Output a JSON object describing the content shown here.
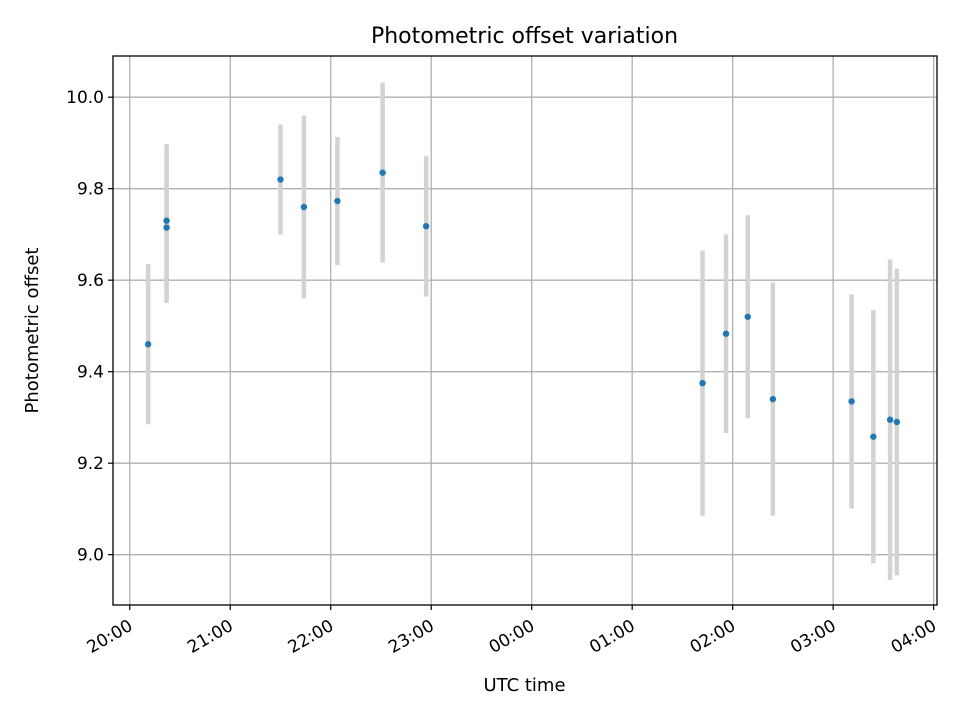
{
  "chart_data": {
    "type": "scatter",
    "title": "Photometric offset variation",
    "xlabel": "UTC time",
    "ylabel": "Photometric offset",
    "x_axis": "time",
    "x_start": "19:50",
    "x_end": "04:02",
    "x_ticks": [
      "20:00",
      "21:00",
      "22:00",
      "23:00",
      "00:00",
      "01:00",
      "02:00",
      "03:00",
      "04:00"
    ],
    "ylim": [
      8.89,
      10.09
    ],
    "y_ticks": [
      "9.0",
      "9.2",
      "9.4",
      "9.6",
      "9.8",
      "10.0"
    ],
    "grid": true,
    "marker_color": "#1f77b4",
    "errorbar_color": "#d3d3d3",
    "points": [
      {
        "time": "20:11",
        "y": 9.46,
        "err": 0.175
      },
      {
        "time": "20:22",
        "y": 9.715,
        "err": 0.165
      },
      {
        "time": "20:22",
        "y": 9.73,
        "err": 0.168
      },
      {
        "time": "21:30",
        "y": 9.82,
        "err": 0.12
      },
      {
        "time": "21:44",
        "y": 9.76,
        "err": 0.2
      },
      {
        "time": "22:04",
        "y": 9.773,
        "err": 0.14
      },
      {
        "time": "22:31",
        "y": 9.835,
        "err": 0.197
      },
      {
        "time": "22:57",
        "y": 9.718,
        "err": 0.154
      },
      {
        "time": "01:42",
        "y": 9.375,
        "err": 0.29
      },
      {
        "time": "01:56",
        "y": 9.483,
        "err": 0.217
      },
      {
        "time": "02:09",
        "y": 9.52,
        "err": 0.222
      },
      {
        "time": "02:24",
        "y": 9.34,
        "err": 0.255
      },
      {
        "time": "03:11",
        "y": 9.335,
        "err": 0.234
      },
      {
        "time": "03:24",
        "y": 9.258,
        "err": 0.277
      },
      {
        "time": "03:34",
        "y": 9.295,
        "err": 0.35
      },
      {
        "time": "03:38",
        "y": 9.29,
        "err": 0.335
      }
    ]
  }
}
